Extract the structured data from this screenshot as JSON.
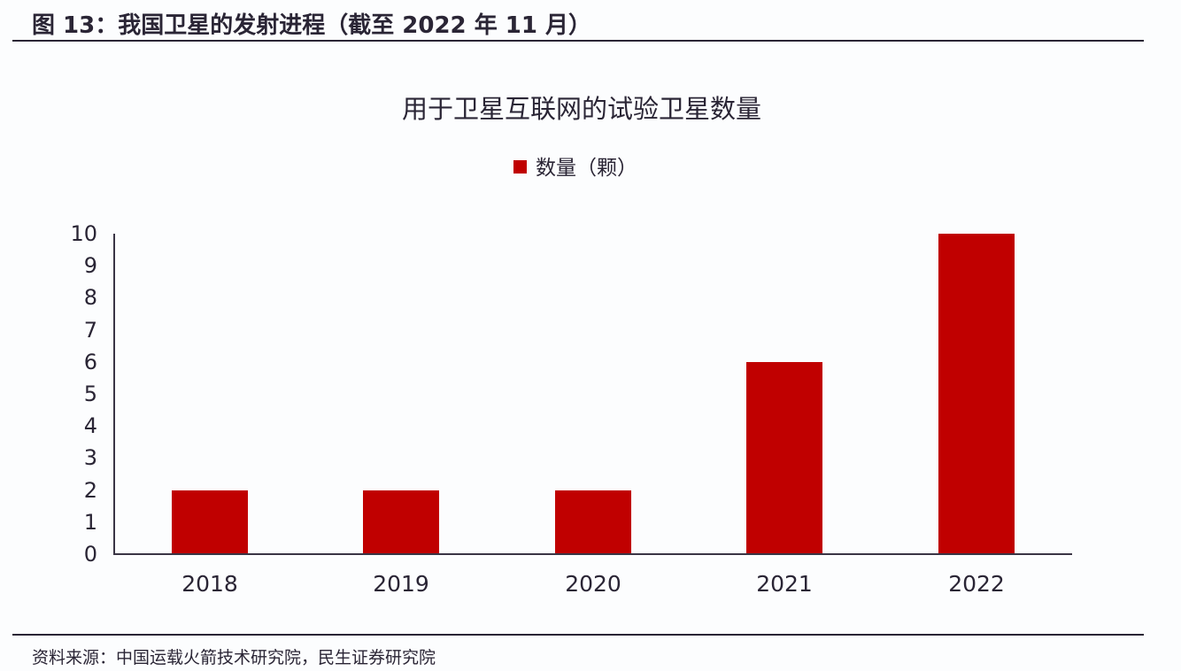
{
  "figure": {
    "title": "图 13：我国卫星的发射进程（截至 2022 年 11 月）",
    "source": "资料来源：中国运载火箭技术研究院，民生证券研究院"
  },
  "colors": {
    "bar": "#c00000",
    "text": "#2a2535",
    "axis": "#3a3545"
  },
  "chart_data": {
    "type": "bar",
    "title": "用于卫星互联网的试验卫星数量",
    "categories": [
      "2018",
      "2019",
      "2020",
      "2021",
      "2022"
    ],
    "series": [
      {
        "name": "数量（颗）",
        "values": [
          2,
          2,
          2,
          6,
          10
        ],
        "color": "#c00000"
      }
    ],
    "xlabel": "",
    "ylabel": "",
    "ylim": [
      0,
      10
    ],
    "yticks": [
      "0",
      "1",
      "2",
      "3",
      "4",
      "5",
      "6",
      "7",
      "8",
      "9",
      "10"
    ],
    "grid": false,
    "legend_position": "top"
  }
}
